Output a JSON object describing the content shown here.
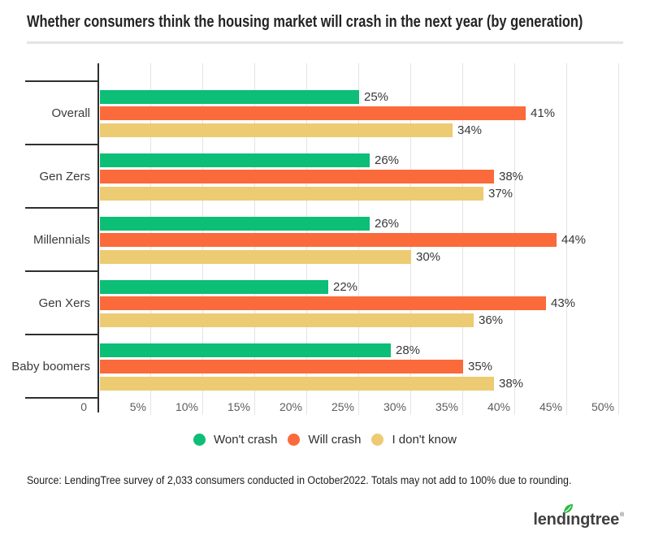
{
  "title": "Whether consumers think the housing market will crash in the next year (by generation)",
  "chart_data": {
    "type": "bar",
    "orientation": "horizontal",
    "title": "Whether consumers think the housing market will crash in the next year (by generation)",
    "categories": [
      "Overall",
      "Gen Zers",
      "Millennials",
      "Gen Xers",
      "Baby boomers"
    ],
    "series": [
      {
        "name": "Won't crash",
        "color": "#0dbe76",
        "values": [
          25,
          26,
          26,
          22,
          28
        ]
      },
      {
        "name": "Will crash",
        "color": "#fa6a3b",
        "values": [
          41,
          38,
          44,
          43,
          35
        ]
      },
      {
        "name": "I don't know",
        "color": "#eccb72",
        "values": [
          34,
          37,
          30,
          36,
          38
        ]
      }
    ],
    "value_suffix": "%",
    "x_ticks": [
      "0",
      "5%",
      "10%",
      "15%",
      "20%",
      "25%",
      "30%",
      "35%",
      "40%",
      "45%",
      "50%"
    ],
    "xlim": [
      0,
      50
    ],
    "grid": true,
    "legend_position": "bottom",
    "axis_color": "#2f2f2f",
    "grid_color": "#e3e3e3"
  },
  "source": "Source: LendingTree survey of 2,033 consumers conducted in October2022. Totals may not add to 100% due to rounding.",
  "logo": {
    "pre": "lend",
    "i": "ı",
    "post": "ngtree",
    "reg": "®",
    "leaf_color": "#2db942",
    "text_color": "#404040"
  }
}
